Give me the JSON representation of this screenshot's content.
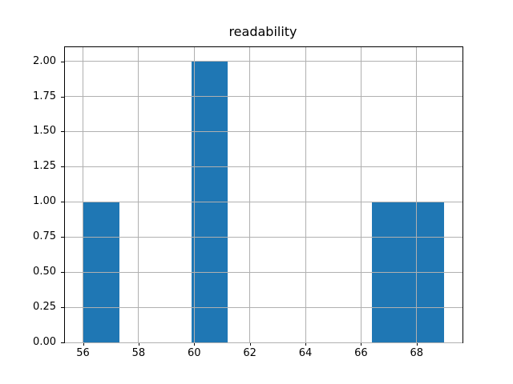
{
  "chart_data": {
    "type": "bar",
    "subtype": "histogram",
    "title": "readability",
    "bins": [
      {
        "x0": 56.0,
        "x1": 57.3,
        "count": 1
      },
      {
        "x0": 57.3,
        "x1": 58.6,
        "count": 0
      },
      {
        "x0": 58.6,
        "x1": 59.9,
        "count": 0
      },
      {
        "x0": 59.9,
        "x1": 61.2,
        "count": 2
      },
      {
        "x0": 61.2,
        "x1": 62.5,
        "count": 0
      },
      {
        "x0": 62.5,
        "x1": 63.8,
        "count": 0
      },
      {
        "x0": 63.8,
        "x1": 65.1,
        "count": 0
      },
      {
        "x0": 65.1,
        "x1": 66.4,
        "count": 0
      },
      {
        "x0": 66.4,
        "x1": 67.7,
        "count": 1
      },
      {
        "x0": 67.7,
        "x1": 69.0,
        "count": 1
      }
    ],
    "xlabel": "",
    "ylabel": "",
    "xticks": [
      56,
      58,
      60,
      62,
      64,
      66,
      68
    ],
    "xtick_labels": [
      "56",
      "58",
      "60",
      "62",
      "64",
      "66",
      "68"
    ],
    "yticks": [
      0.0,
      0.25,
      0.5,
      0.75,
      1.0,
      1.25,
      1.5,
      1.75,
      2.0
    ],
    "ytick_labels": [
      "0.00",
      "0.25",
      "0.50",
      "0.75",
      "1.00",
      "1.25",
      "1.50",
      "1.75",
      "2.00"
    ],
    "xlim": [
      55.35,
      69.65
    ],
    "ylim": [
      0,
      2.1
    ],
    "grid": true,
    "legend": false,
    "bar_color": "#1f77b4",
    "grid_color": "#b0b0b0",
    "spine_color": "#000000",
    "background_color": "#ffffff"
  }
}
